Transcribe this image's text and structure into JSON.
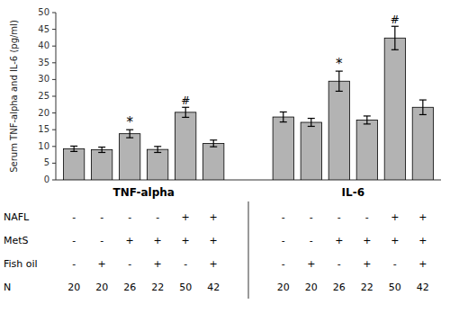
{
  "chart_data": {
    "type": "bar",
    "categories": [
      null,
      null,
      null,
      null,
      null,
      null
    ],
    "series": [
      {
        "name": "TNF-alpha",
        "values": [
          9.3,
          9.0,
          13.8,
          9.1,
          20.2,
          10.9
        ],
        "errors": [
          0.8,
          0.8,
          1.2,
          0.9,
          1.5,
          1.0
        ]
      },
      {
        "name": "IL-6",
        "values": [
          18.8,
          17.2,
          29.5,
          17.9,
          42.4,
          21.7
        ],
        "errors": [
          1.5,
          1.2,
          3.0,
          1.2,
          3.5,
          2.2
        ]
      }
    ],
    "color": "#b3b3b3",
    "ylabel": "Serum TNF-alpha and IL-6 (pg/ml)",
    "ylim": [
      0,
      50
    ],
    "yticks": [
      0,
      5,
      10,
      15,
      20,
      25,
      30,
      35,
      40,
      45,
      50
    ],
    "annotations": [
      {
        "series": 0,
        "index": 2,
        "text": "*"
      },
      {
        "series": 0,
        "index": 4,
        "text": "#"
      },
      {
        "series": 1,
        "index": 2,
        "text": "*"
      },
      {
        "series": 1,
        "index": 4,
        "text": "#"
      }
    ],
    "table": {
      "row_labels": [
        "NAFL",
        "MetS",
        "Fish oil",
        "N"
      ],
      "rows": [
        [
          "-",
          "-",
          "-",
          "-",
          "+",
          "+"
        ],
        [
          "-",
          "-",
          "+",
          "+",
          "+",
          "+"
        ],
        [
          "-",
          "+",
          "-",
          "+",
          "-",
          "+"
        ],
        [
          "20",
          "20",
          "26",
          "22",
          "50",
          "42"
        ]
      ]
    },
    "grid": false
  }
}
